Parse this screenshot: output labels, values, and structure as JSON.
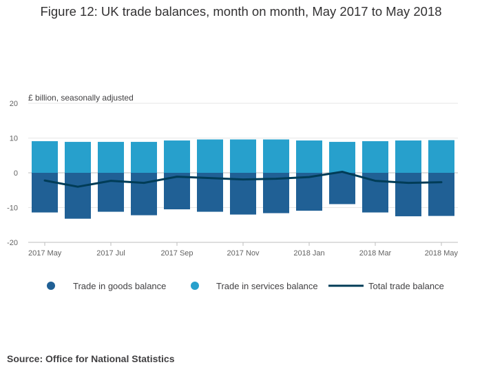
{
  "chart_data": {
    "type": "bar",
    "title": "Figure 12: UK trade balances, month on month, May 2017 to May 2018",
    "ylabel": "£ billion, seasonally adjusted",
    "xlabel": "",
    "ylim": [
      -20,
      20
    ],
    "yticks": [
      20,
      10,
      0,
      -10,
      -20
    ],
    "categories": [
      "2017 May",
      "2017 Jun",
      "2017 Jul",
      "2017 Aug",
      "2017 Sep",
      "2017 Oct",
      "2017 Nov",
      "2017 Dec",
      "2018 Jan",
      "2018 Feb",
      "2018 Mar",
      "2018 Apr",
      "2018 May"
    ],
    "tick_labels": [
      "2017 May",
      "2017 Jul",
      "2017 Sep",
      "2017 Nov",
      "2018 Jan",
      "2018 Mar",
      "2018 May"
    ],
    "tick_label_indices": [
      0,
      2,
      4,
      6,
      8,
      10,
      12
    ],
    "series": [
      {
        "name": "Trade in goods balance",
        "kind": "bar",
        "color": "#206095",
        "values": [
          -11.4,
          -13.2,
          -11.2,
          -12.2,
          -10.5,
          -11.2,
          -12.0,
          -11.6,
          -10.9,
          -9.0,
          -11.4,
          -12.5,
          -12.4
        ]
      },
      {
        "name": "Trade in services balance",
        "kind": "bar",
        "color": "#27a0cc",
        "values": [
          9.1,
          8.9,
          8.9,
          8.9,
          9.3,
          9.6,
          9.6,
          9.6,
          9.3,
          8.9,
          9.1,
          9.3,
          9.4
        ]
      },
      {
        "name": "Total trade balance",
        "kind": "line",
        "color": "#003c57",
        "values": [
          -2.2,
          -4.0,
          -2.3,
          -2.9,
          -1.1,
          -1.5,
          -1.9,
          -1.7,
          -1.2,
          0.3,
          -2.3,
          -2.9,
          -2.7
        ]
      }
    ],
    "legend_position": "bottom",
    "grid": true
  },
  "source": "Source: Office for National Statistics"
}
